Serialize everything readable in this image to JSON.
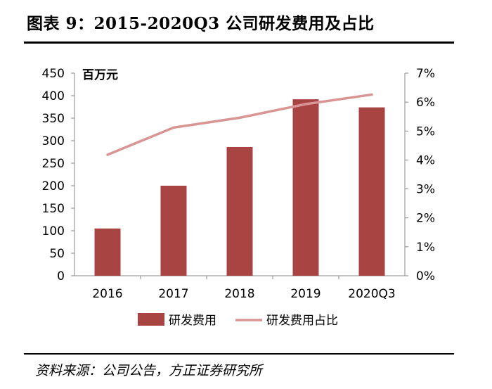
{
  "figure": {
    "title": "图表 9：2015-2020Q3 公司研发费用及占比",
    "source": "资料来源：公司公告，方正证券研究所"
  },
  "chart_data": {
    "type": "bar+line",
    "unit_label": "百万元",
    "categories": [
      "2016",
      "2017",
      "2018",
      "2019",
      "2020Q3"
    ],
    "series": [
      {
        "name": "研发费用",
        "type": "bar",
        "axis": "left",
        "color": "#a84543",
        "values": [
          105,
          200,
          286,
          392,
          374
        ]
      },
      {
        "name": "研发费用占比",
        "type": "line",
        "axis": "right",
        "color": "#d99594",
        "values": [
          0.0418,
          0.0512,
          0.0546,
          0.0593,
          0.0626
        ]
      }
    ],
    "y_left": {
      "min": 0,
      "max": 450,
      "step": 50,
      "ticks": [
        "0",
        "50",
        "100",
        "150",
        "200",
        "250",
        "300",
        "350",
        "400",
        "450"
      ]
    },
    "y_right": {
      "min": 0,
      "max": 0.07,
      "step": 0.01,
      "ticks": [
        "0%",
        "1%",
        "2%",
        "3%",
        "4%",
        "5%",
        "6%",
        "7%"
      ]
    },
    "grid": false,
    "legend_position": "bottom-center"
  }
}
